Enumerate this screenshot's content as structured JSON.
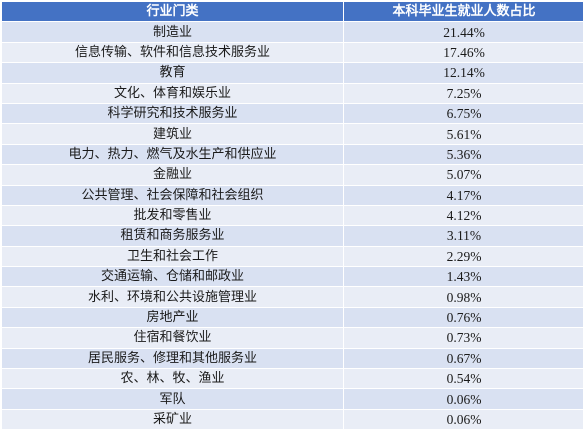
{
  "table": {
    "headers": [
      "行业门类",
      "本科毕业生就业人数占比"
    ],
    "rows": [
      [
        "制造业",
        "21.44%"
      ],
      [
        "信息传输、软件和信息技术服务业",
        "17.46%"
      ],
      [
        "教育",
        "12.14%"
      ],
      [
        "文化、体育和娱乐业",
        "7.25%"
      ],
      [
        "科学研究和技术服务业",
        "6.75%"
      ],
      [
        "建筑业",
        "5.61%"
      ],
      [
        "电力、热力、燃气及水生产和供应业",
        "5.36%"
      ],
      [
        "金融业",
        "5.07%"
      ],
      [
        "公共管理、社会保障和社会组织",
        "4.17%"
      ],
      [
        "批发和零售业",
        "4.12%"
      ],
      [
        "租赁和商务服务业",
        "3.11%"
      ],
      [
        "卫生和社会工作",
        "2.29%"
      ],
      [
        "交通运输、仓储和邮政业",
        "1.43%"
      ],
      [
        "水利、环境和公共设施管理业",
        "0.98%"
      ],
      [
        "房地产业",
        "0.76%"
      ],
      [
        "住宿和餐饮业",
        "0.73%"
      ],
      [
        "居民服务、修理和其他服务业",
        "0.67%"
      ],
      [
        "农、林、牧、渔业",
        "0.54%"
      ],
      [
        "军队",
        "0.06%"
      ],
      [
        "采矿业",
        "0.06%"
      ]
    ]
  },
  "colors": {
    "header_bg": "#4472c4",
    "row_odd_bg": "#d9e1f2",
    "row_even_bg": "#e9edf6"
  }
}
